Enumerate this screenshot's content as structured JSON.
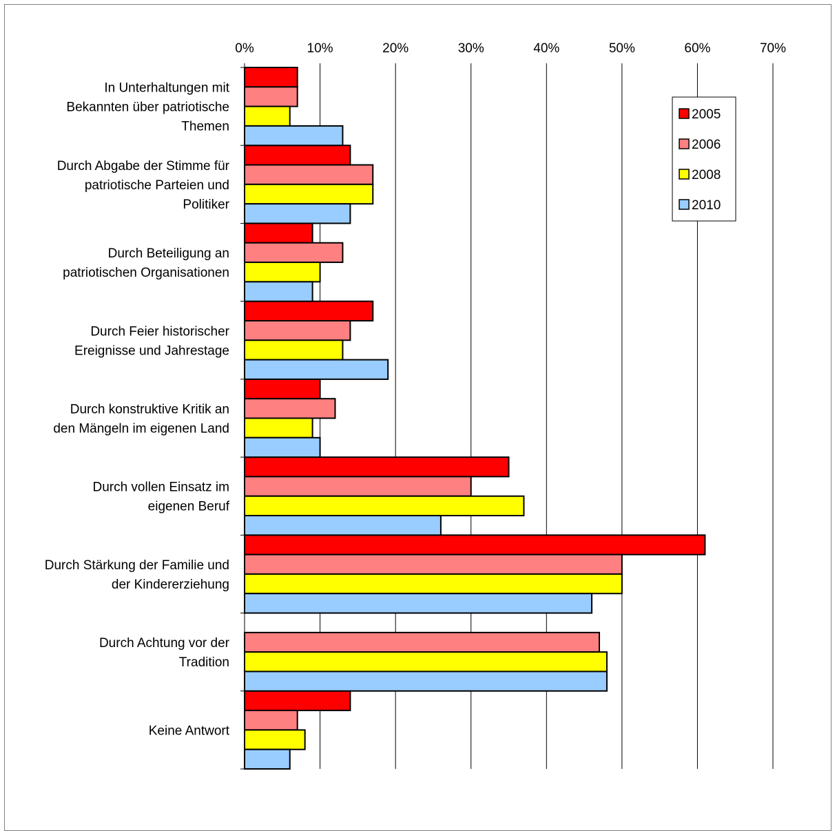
{
  "chart_data": {
    "type": "bar",
    "orientation": "horizontal",
    "title": "",
    "xlabel": "",
    "ylabel": "",
    "xlim": [
      0,
      70
    ],
    "x_ticks": [
      "0%",
      "10%",
      "20%",
      "30%",
      "40%",
      "50%",
      "60%",
      "70%"
    ],
    "grid": "vertical",
    "legend_position": "top-right",
    "categories": [
      "In Unterhaltungen mit Bekannten über patriotische Themen",
      "Durch Abgabe der Stimme für patriotische Parteien und Politiker",
      "Durch Beteiligung an patriotischen Organisationen",
      "Durch Feier historischer Ereignisse und Jahrestage",
      "Durch konstruktive Kritik an den Mängeln im eigenen Land",
      "Durch vollen Einsatz im eigenen Beruf",
      "Durch Stärkung der Familie und der Kindererziehung",
      "Durch Achtung vor der Tradition",
      "Keine Antwort"
    ],
    "category_lines": [
      [
        "In Unterhaltungen mit",
        "Bekannten über patriotische",
        "Themen"
      ],
      [
        "Durch Abgabe der Stimme für",
        "patriotische Parteien und",
        "Politiker"
      ],
      [
        "Durch Beteiligung an",
        "patriotischen Organisationen"
      ],
      [
        "Durch Feier historischer",
        "Ereignisse und Jahrestage"
      ],
      [
        "Durch konstruktive Kritik an",
        "den Mängeln im eigenen Land"
      ],
      [
        "Durch vollen Einsatz im",
        "eigenen Beruf"
      ],
      [
        "Durch Stärkung der Familie und",
        "der Kindererziehung"
      ],
      [
        "Durch Achtung vor der",
        "Tradition"
      ],
      [
        "Keine Antwort"
      ]
    ],
    "series": [
      {
        "name": "2005",
        "color": "#ff0000",
        "values": [
          7,
          14,
          9,
          17,
          10,
          35,
          61,
          null,
          14
        ]
      },
      {
        "name": "2006",
        "color": "#ff8080",
        "values": [
          7,
          17,
          13,
          14,
          12,
          30,
          50,
          47,
          7
        ]
      },
      {
        "name": "2008",
        "color": "#ffff00",
        "values": [
          6,
          17,
          10,
          13,
          9,
          37,
          50,
          48,
          8
        ]
      },
      {
        "name": "2010",
        "color": "#99ccff",
        "values": [
          13,
          14,
          9,
          19,
          10,
          26,
          46,
          48,
          6
        ]
      }
    ]
  }
}
